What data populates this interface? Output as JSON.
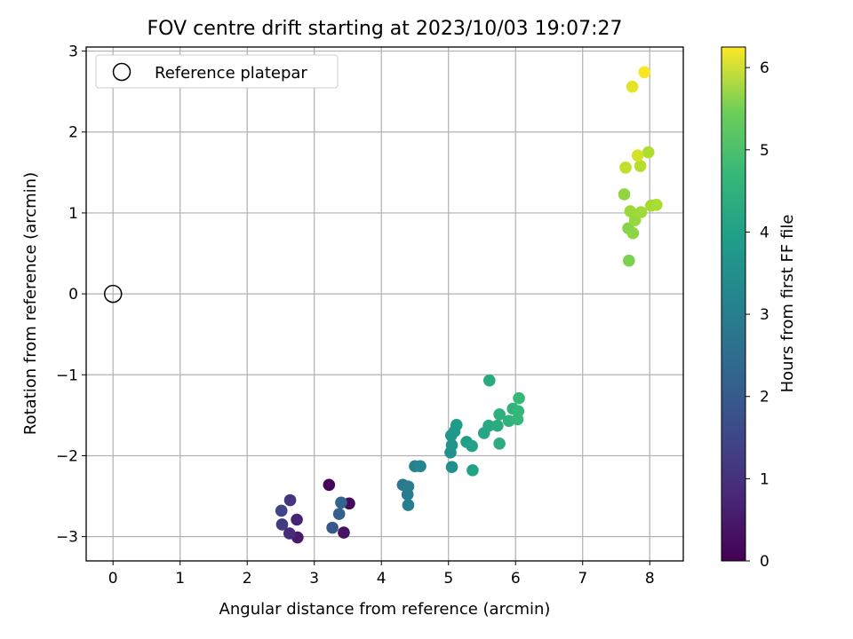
{
  "chart_data": {
    "type": "scatter",
    "title": "FOV centre drift starting at 2023/10/03 19:07:27",
    "xlabel": "Angular distance from reference (arcmin)",
    "ylabel": "Rotation from reference (arcmin)",
    "xlim": [
      -0.4,
      8.5
    ],
    "ylim": [
      -3.3,
      3.05
    ],
    "xticks": [
      "0",
      "1",
      "2",
      "3",
      "4",
      "5",
      "6",
      "7",
      "8"
    ],
    "yticks": [
      "−3",
      "−2",
      "−1",
      "0",
      "1",
      "2",
      "3"
    ],
    "grid": true,
    "legend": {
      "position": "top-left",
      "entries": [
        "Reference platepar"
      ]
    },
    "reference_point": {
      "x": 0,
      "y": 0
    },
    "colorbar": {
      "label": "Hours from first FF file",
      "range": [
        0,
        6.25
      ],
      "ticks": [
        "0",
        "1",
        "2",
        "3",
        "4",
        "5",
        "6"
      ],
      "colormap": "viridis"
    },
    "series": [
      {
        "points": [
          {
            "x": 3.22,
            "y": -2.36,
            "h": 0.05
          },
          {
            "x": 3.52,
            "y": -2.59,
            "h": 0.15
          },
          {
            "x": 3.44,
            "y": -2.95,
            "h": 0.3
          },
          {
            "x": 2.75,
            "y": -3.01,
            "h": 0.45
          },
          {
            "x": 2.74,
            "y": -2.79,
            "h": 0.6
          },
          {
            "x": 2.63,
            "y": -2.96,
            "h": 0.8
          },
          {
            "x": 2.64,
            "y": -2.55,
            "h": 0.95
          },
          {
            "x": 2.52,
            "y": -2.85,
            "h": 1.1
          },
          {
            "x": 2.51,
            "y": -2.68,
            "h": 1.3
          },
          {
            "x": 3.27,
            "y": -2.89,
            "h": 1.7
          },
          {
            "x": 3.37,
            "y": -2.72,
            "h": 1.9
          },
          {
            "x": 3.4,
            "y": -2.58,
            "h": 2.0
          },
          {
            "x": 4.32,
            "y": -2.36,
            "h": 2.5
          },
          {
            "x": 4.39,
            "y": -2.48,
            "h": 2.6
          },
          {
            "x": 4.4,
            "y": -2.38,
            "h": 2.65
          },
          {
            "x": 4.4,
            "y": -2.61,
            "h": 2.7
          },
          {
            "x": 4.5,
            "y": -2.13,
            "h": 2.8
          },
          {
            "x": 4.58,
            "y": -2.13,
            "h": 2.9
          },
          {
            "x": 5.05,
            "y": -2.14,
            "h": 3.1
          },
          {
            "x": 5.03,
            "y": -1.96,
            "h": 3.2
          },
          {
            "x": 5.05,
            "y": -1.87,
            "h": 3.25
          },
          {
            "x": 5.04,
            "y": -1.75,
            "h": 3.3
          },
          {
            "x": 5.09,
            "y": -1.7,
            "h": 3.35
          },
          {
            "x": 5.12,
            "y": -1.62,
            "h": 3.4
          },
          {
            "x": 5.27,
            "y": -1.83,
            "h": 3.5
          },
          {
            "x": 5.35,
            "y": -1.88,
            "h": 3.55
          },
          {
            "x": 5.36,
            "y": -2.18,
            "h": 3.6
          },
          {
            "x": 5.53,
            "y": -1.72,
            "h": 3.7
          },
          {
            "x": 5.6,
            "y": -1.63,
            "h": 3.75
          },
          {
            "x": 5.61,
            "y": -1.07,
            "h": 3.8
          },
          {
            "x": 5.73,
            "y": -1.63,
            "h": 3.85
          },
          {
            "x": 5.76,
            "y": -1.85,
            "h": 3.9
          },
          {
            "x": 5.76,
            "y": -1.49,
            "h": 3.95
          },
          {
            "x": 5.9,
            "y": -1.57,
            "h": 4.0
          },
          {
            "x": 5.96,
            "y": -1.42,
            "h": 4.05
          },
          {
            "x": 6.03,
            "y": -1.55,
            "h": 4.1
          },
          {
            "x": 6.04,
            "y": -1.45,
            "h": 4.15
          },
          {
            "x": 6.05,
            "y": -1.29,
            "h": 4.2
          },
          {
            "x": 7.69,
            "y": 0.41,
            "h": 5.0
          },
          {
            "x": 7.68,
            "y": 0.81,
            "h": 5.1
          },
          {
            "x": 7.75,
            "y": 0.75,
            "h": 5.15
          },
          {
            "x": 7.62,
            "y": 1.23,
            "h": 5.2
          },
          {
            "x": 7.78,
            "y": 0.91,
            "h": 5.25
          },
          {
            "x": 7.71,
            "y": 1.02,
            "h": 5.3
          },
          {
            "x": 7.87,
            "y": 1.01,
            "h": 5.35
          },
          {
            "x": 8.02,
            "y": 1.09,
            "h": 5.4
          },
          {
            "x": 8.1,
            "y": 1.1,
            "h": 5.45
          },
          {
            "x": 7.98,
            "y": 1.75,
            "h": 5.5
          },
          {
            "x": 7.86,
            "y": 1.58,
            "h": 5.55
          },
          {
            "x": 7.64,
            "y": 1.56,
            "h": 5.65
          },
          {
            "x": 7.82,
            "y": 1.71,
            "h": 5.85
          },
          {
            "x": 7.74,
            "y": 2.56,
            "h": 6.0
          },
          {
            "x": 7.92,
            "y": 2.74,
            "h": 6.2
          }
        ]
      }
    ]
  }
}
